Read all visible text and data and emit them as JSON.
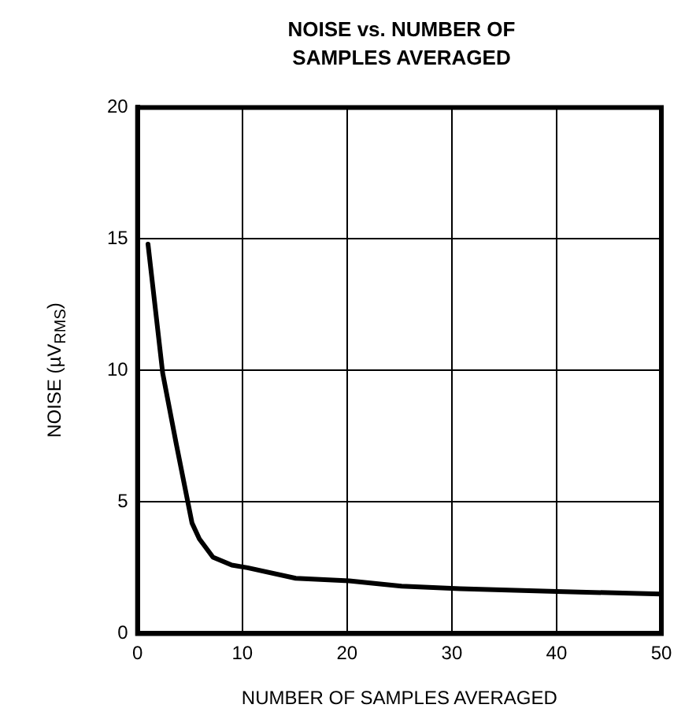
{
  "chart_data": {
    "type": "line",
    "title": "NOISE vs. NUMBER OF SAMPLES AVERAGED",
    "xlabel": "NUMBER OF SAMPLES AVERAGED",
    "ylabel": "NOISE (µV$_{RMS}$)",
    "series": [
      {
        "color": "#000000",
        "x": [
          1,
          2.4,
          3.7,
          5.2,
          5.9,
          7.2,
          9,
          10.5,
          15.1,
          20.2,
          25.2,
          30.8,
          40,
          50
        ],
        "values": [
          14.8,
          9.9,
          7.2,
          4.2,
          3.6,
          2.9,
          2.6,
          2.5,
          2.1,
          2.0,
          1.8,
          1.7,
          1.6,
          1.5
        ]
      }
    ],
    "xlim": [
      0,
      50
    ],
    "xticks": [
      0,
      10,
      20,
      30,
      40,
      50
    ],
    "ylim": [
      0,
      20
    ],
    "yticks": [
      0,
      5,
      10,
      15,
      20
    ],
    "grid": true,
    "legend": false,
    "marker": "none",
    "line_style": "solid"
  }
}
